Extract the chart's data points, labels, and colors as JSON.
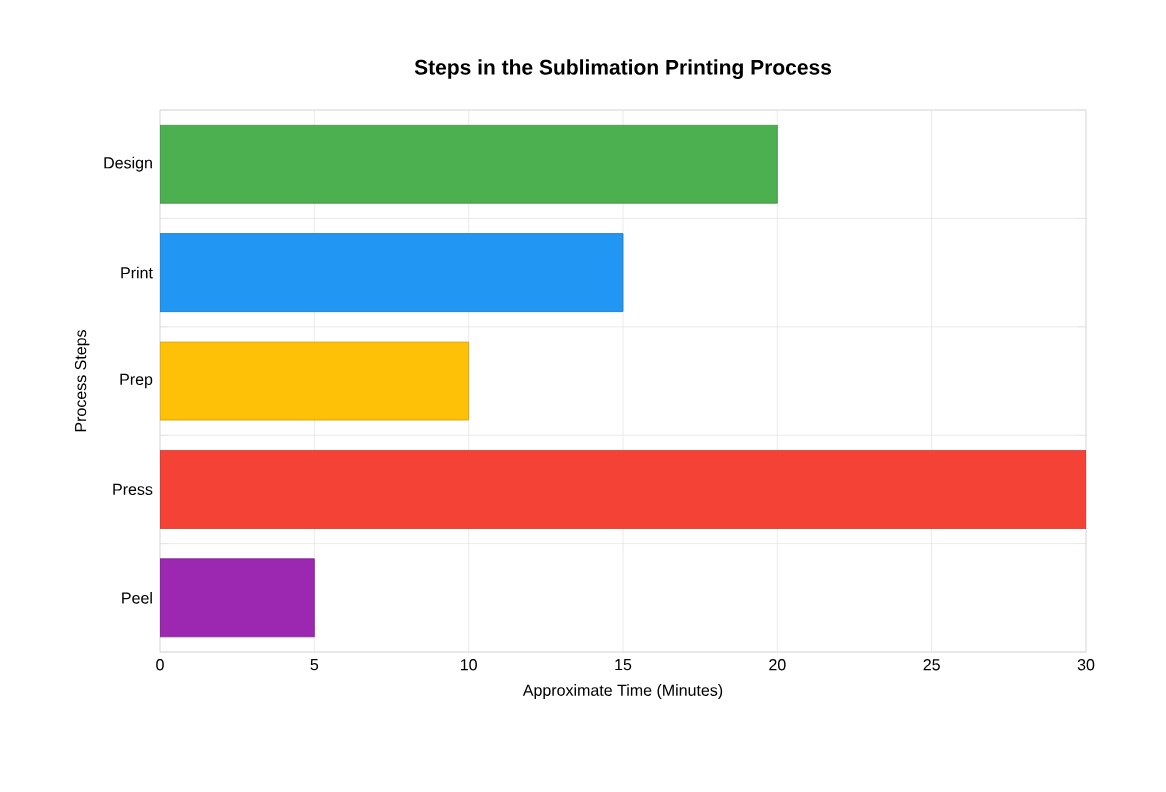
{
  "chart_data": {
    "type": "bar",
    "orientation": "horizontal",
    "title": "Steps in the Sublimation Printing Process",
    "xlabel": "Approximate Time (Minutes)",
    "ylabel": "Process Steps",
    "categories": [
      "Design",
      "Print",
      "Prep",
      "Press",
      "Peel"
    ],
    "values": [
      20,
      15,
      10,
      30,
      5
    ],
    "colors": [
      "#4caf50",
      "#2196f3",
      "#ffc107",
      "#f44336",
      "#9c27b0"
    ],
    "xlim": [
      0,
      30
    ],
    "xticks": [
      0,
      5,
      10,
      15,
      20,
      25,
      30
    ],
    "grid": true
  }
}
